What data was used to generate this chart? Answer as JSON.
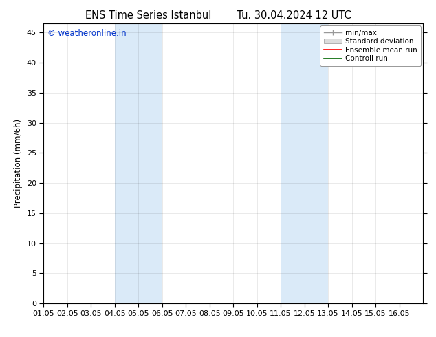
{
  "title_left": "ENS Time Series Istanbul",
  "title_right": "Tu. 30.04.2024 12 UTC",
  "ylabel": "Precipitation (mm/6h)",
  "watermark": "© weatheronline.in",
  "watermark_color": "#0033cc",
  "xlim": [
    0,
    16
  ],
  "ylim": [
    0,
    46.5
  ],
  "yticks": [
    0,
    5,
    10,
    15,
    20,
    25,
    30,
    35,
    40,
    45
  ],
  "xtick_labels": [
    "01.05",
    "02.05",
    "03.05",
    "04.05",
    "05.05",
    "06.05",
    "07.05",
    "08.05",
    "09.05",
    "10.05",
    "11.05",
    "12.05",
    "13.05",
    "14.05",
    "15.05",
    "16.05"
  ],
  "shaded_regions": [
    {
      "xmin": 3,
      "xmax": 5,
      "color": "#daeaf8"
    },
    {
      "xmin": 10,
      "xmax": 12,
      "color": "#daeaf8"
    }
  ],
  "bg_color": "#ffffff",
  "plot_bg_color": "#ffffff",
  "spine_color": "#000000",
  "grid_color": "#000000",
  "grid_alpha": 0.15,
  "legend_items": [
    {
      "label": "min/max",
      "lcolor": "#999999",
      "style": "errorbar"
    },
    {
      "label": "Standard deviation",
      "lcolor": "#cccccc",
      "style": "bar"
    },
    {
      "label": "Ensemble mean run",
      "lcolor": "#ff0000",
      "style": "line"
    },
    {
      "label": "Controll run",
      "lcolor": "#006600",
      "style": "line"
    }
  ],
  "title_fontsize": 10.5,
  "axis_fontsize": 8.5,
  "tick_fontsize": 8,
  "watermark_fontsize": 8.5,
  "legend_fontsize": 7.5
}
